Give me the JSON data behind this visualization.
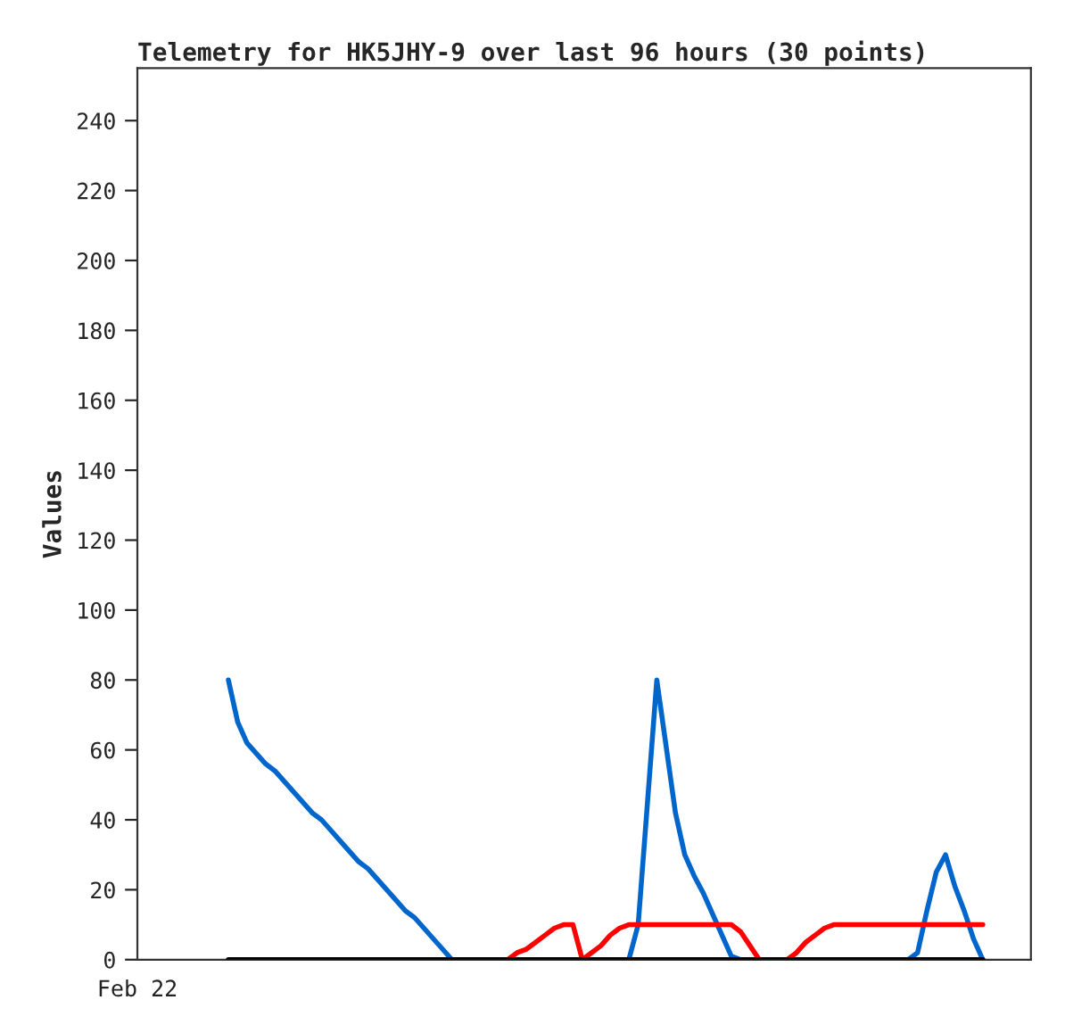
{
  "chart_data": {
    "type": "line",
    "title": "Telemetry for HK5JHY-9 over last 96 hours (30 points)",
    "ylabel": "Values",
    "annotations": [
      "Feb 22"
    ],
    "categories": [
      null,
      null,
      null,
      null,
      null,
      null,
      null,
      null,
      null,
      null,
      null,
      null,
      null,
      null,
      null,
      null,
      null,
      null,
      null,
      null,
      null,
      null,
      null,
      null,
      null,
      null,
      null,
      null,
      null,
      null,
      null,
      null,
      null,
      null,
      null,
      null,
      null,
      null,
      null,
      null,
      null,
      null,
      null,
      null,
      null,
      null,
      null,
      null,
      null,
      null,
      null,
      null,
      null,
      null,
      null,
      null,
      null,
      null,
      null,
      null,
      null,
      null,
      null,
      null,
      null,
      null,
      null,
      null,
      null,
      null,
      null,
      null,
      null,
      null,
      null,
      null,
      null,
      null,
      null,
      null,
      null,
      null
    ],
    "ylim": [
      0,
      255
    ],
    "yticks": [
      0,
      20,
      40,
      60,
      80,
      100,
      120,
      140,
      160,
      180,
      200,
      220,
      240
    ],
    "grid": false,
    "marker": "none",
    "line_style": "solid",
    "series": [
      {
        "color": "#0066cc",
        "values": [
          80,
          68,
          62,
          59,
          56,
          54,
          51,
          48,
          45,
          42,
          40,
          37,
          34,
          31,
          28,
          26,
          23,
          20,
          17,
          14,
          12,
          9,
          6,
          3,
          0,
          null,
          null,
          null,
          null,
          null,
          null,
          null,
          null,
          null,
          null,
          null,
          null,
          null,
          null,
          null,
          null,
          null,
          null,
          0,
          10,
          45,
          80,
          61,
          42,
          30,
          24,
          19,
          13,
          7,
          1,
          0,
          null,
          null,
          null,
          null,
          null,
          null,
          null,
          null,
          null,
          null,
          null,
          null,
          null,
          null,
          null,
          null,
          null,
          0,
          2,
          14,
          25,
          30,
          21,
          14,
          6,
          0
        ]
      },
      {
        "color": "#ff0000",
        "values": [
          null,
          null,
          null,
          null,
          null,
          null,
          null,
          null,
          null,
          null,
          null,
          null,
          null,
          null,
          null,
          null,
          null,
          null,
          null,
          null,
          null,
          null,
          null,
          null,
          null,
          null,
          null,
          null,
          null,
          null,
          0,
          2,
          3,
          5,
          7,
          9,
          10,
          10,
          0,
          2,
          4,
          7,
          9,
          10,
          10,
          10,
          10,
          10,
          10,
          10,
          10,
          10,
          10,
          10,
          10,
          8,
          4,
          0,
          null,
          null,
          0,
          2,
          5,
          7,
          9,
          10,
          10,
          10,
          10,
          10,
          10,
          10,
          10,
          10,
          10,
          10,
          10,
          10,
          10,
          10,
          10,
          10
        ]
      },
      {
        "color": "#000000",
        "values": [
          0,
          0,
          0,
          0,
          0,
          0,
          0,
          0,
          0,
          0,
          0,
          0,
          0,
          0,
          0,
          0,
          0,
          0,
          0,
          0,
          0,
          0,
          0,
          0,
          0,
          0,
          0,
          0,
          0,
          0,
          0,
          0,
          0,
          0,
          0,
          0,
          0,
          0,
          0,
          0,
          0,
          0,
          0,
          0,
          0,
          0,
          0,
          0,
          0,
          0,
          0,
          0,
          0,
          0,
          0,
          0,
          0,
          0,
          0,
          0,
          0,
          0,
          0,
          0,
          0,
          0,
          0,
          0,
          0,
          0,
          0,
          0,
          0,
          0,
          0,
          0,
          0,
          0,
          0,
          0,
          0,
          0
        ]
      }
    ]
  }
}
